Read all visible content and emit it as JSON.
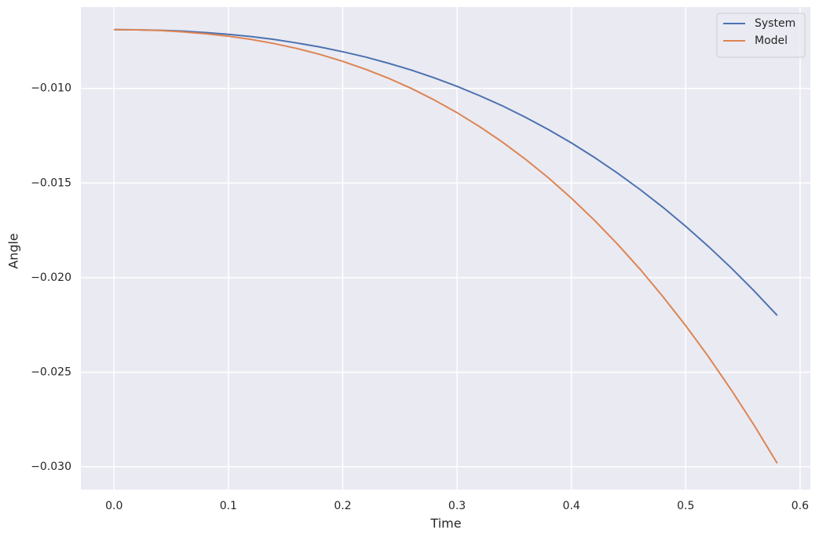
{
  "chart_data": {
    "type": "line",
    "x_label": "Time",
    "y_label": "Angle",
    "x": [
      0,
      0.02,
      0.04,
      0.06,
      0.08,
      0.1,
      0.12,
      0.14,
      0.16,
      0.18,
      0.2,
      0.22,
      0.24,
      0.26,
      0.28,
      0.3,
      0.32,
      0.34,
      0.36,
      0.38,
      0.4,
      0.42,
      0.44,
      0.46,
      0.48,
      0.5,
      0.52,
      0.54,
      0.56,
      0.58
    ],
    "series": [
      {
        "name": "System",
        "color": "#4c72b0",
        "values": [
          -0.00689,
          -0.0069,
          -0.00693,
          -0.00697,
          -0.00705,
          -0.00714,
          -0.00726,
          -0.00741,
          -0.0076,
          -0.00781,
          -0.00806,
          -0.00834,
          -0.00867,
          -0.00903,
          -0.00944,
          -0.00989,
          -0.01039,
          -0.01093,
          -0.01153,
          -0.01218,
          -0.01288,
          -0.01364,
          -0.01446,
          -0.01534,
          -0.01628,
          -0.01729,
          -0.01836,
          -0.0195,
          -0.02071,
          -0.022
        ]
      },
      {
        "name": "Model",
        "color": "#dd8452",
        "values": [
          -0.00689,
          -0.0069,
          -0.00694,
          -0.00701,
          -0.00711,
          -0.00724,
          -0.00741,
          -0.00763,
          -0.00789,
          -0.0082,
          -0.00857,
          -0.00899,
          -0.00946,
          -0.01,
          -0.01061,
          -0.01128,
          -0.01203,
          -0.01285,
          -0.01375,
          -0.01473,
          -0.0158,
          -0.01696,
          -0.01821,
          -0.01955,
          -0.021,
          -0.02254,
          -0.02419,
          -0.02595,
          -0.02782,
          -0.02981
        ]
      }
    ],
    "xlim": [
      -0.029,
      0.609
    ],
    "ylim": [
      -0.0312,
      -0.0057
    ],
    "xticks": [
      {
        "value": 0,
        "label": "0.0"
      },
      0.1,
      0.2,
      0.3,
      0.4,
      0.5,
      0.6
    ],
    "yticks": [
      {
        "value": -0.01,
        "label": "−0.010"
      },
      {
        "value": -0.015,
        "label": "−0.015"
      },
      {
        "value": -0.02,
        "label": "−0.020"
      },
      {
        "value": -0.025,
        "label": "−0.025"
      },
      {
        "value": -0.03,
        "label": "−0.030"
      }
    ],
    "grid": true,
    "legend": "upper right"
  }
}
